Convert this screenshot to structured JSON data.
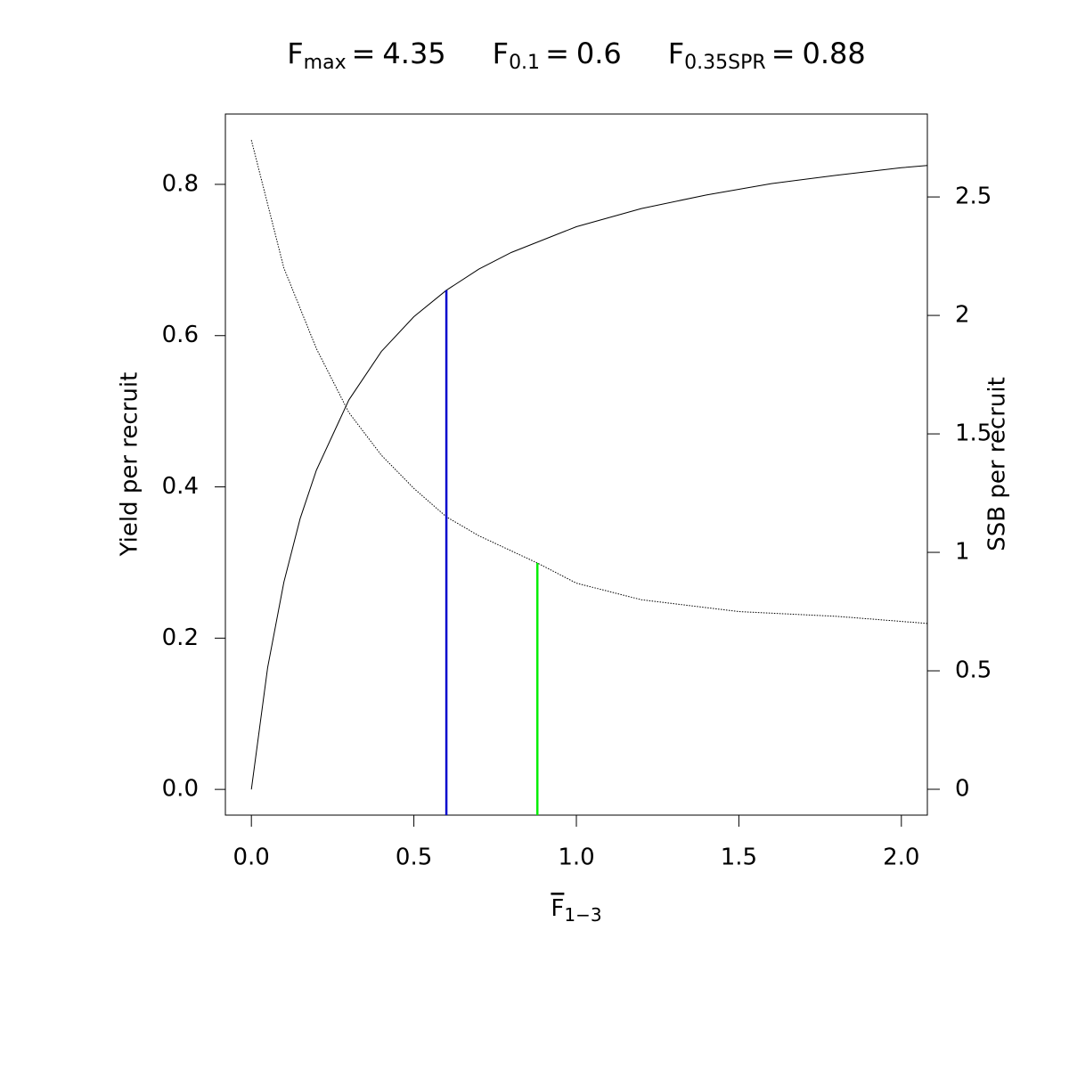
{
  "chart_data": {
    "type": "line",
    "title_parts": [
      {
        "symbol": "F",
        "subscript": "max",
        "relation": "=",
        "value": 4.35
      },
      {
        "symbol": "F",
        "subscript": "0.1",
        "relation": "=",
        "value": 0.6
      },
      {
        "symbol": "F",
        "subscript": "0.35SPR",
        "relation": "=",
        "value": 0.88
      }
    ],
    "xlabel": {
      "symbol": "F",
      "subscript": "1−3"
    },
    "ylabel": "Yield per recruit",
    "y2label": "SSB per recruit",
    "xlim": [
      -0.08,
      2.08
    ],
    "ylim": [
      -0.034,
      0.893
    ],
    "y2lim": [
      -0.109,
      2.85
    ],
    "xticks": [
      {
        "value": 0,
        "label": "0.0"
      },
      0.5,
      {
        "value": 1,
        "label": "1.0"
      },
      1.5,
      {
        "value": 2,
        "label": "2.0"
      }
    ],
    "yticks": [
      {
        "value": 0,
        "label": "0.0"
      },
      0.2,
      0.4,
      0.6,
      0.8
    ],
    "y2ticks": [
      0,
      0.5,
      1,
      1.5,
      2,
      2.5
    ],
    "series": [
      {
        "color": "#000000",
        "line_style": "solid",
        "axis": "y",
        "x": [
          0,
          0.05,
          0.1,
          0.15,
          0.2,
          0.3,
          0.4,
          0.5,
          0.6,
          0.7,
          0.8,
          1.0,
          1.2,
          1.4,
          1.6,
          1.8,
          2.0,
          2.08
        ],
        "values": [
          0,
          0.161,
          0.274,
          0.358,
          0.422,
          0.515,
          0.579,
          0.625,
          0.66,
          0.688,
          0.71,
          0.744,
          0.768,
          0.786,
          0.801,
          0.812,
          0.822,
          0.825
        ]
      },
      {
        "color": "#000000",
        "line_style": "dotted",
        "axis": "y2",
        "x": [
          0,
          0.1,
          0.2,
          0.3,
          0.4,
          0.5,
          0.6,
          0.7,
          0.88,
          1.0,
          1.2,
          1.5,
          1.8,
          2.08
        ],
        "values": [
          2.74,
          2.2,
          1.86,
          1.59,
          1.41,
          1.27,
          1.15,
          1.07,
          0.955,
          0.87,
          0.8,
          0.75,
          0.73,
          0.7
        ]
      }
    ],
    "reference_lines": [
      {
        "x": 0.6,
        "y": 0.66,
        "color": "#0000cd",
        "axis": "y"
      },
      {
        "x": 0.88,
        "y": 0.955,
        "color": "#00ee00",
        "axis": "y2"
      }
    ]
  }
}
